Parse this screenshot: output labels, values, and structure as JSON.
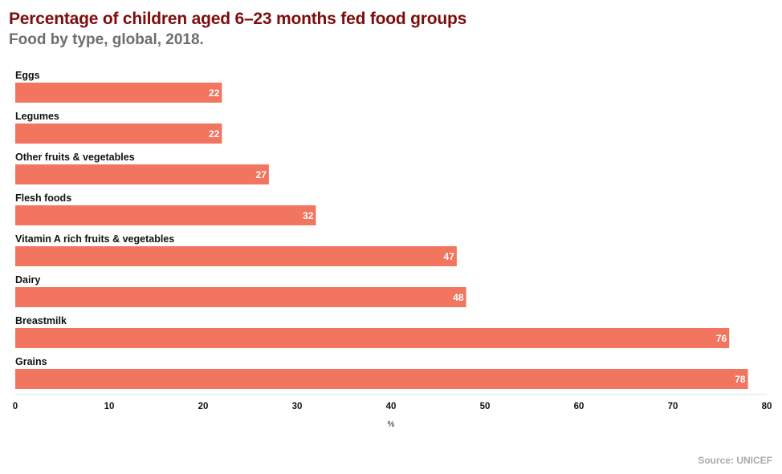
{
  "header": {
    "title": "Percentage of children aged 6–23 months fed food groups",
    "subtitle": "Food by type, global, 2018."
  },
  "footer": {
    "source": "Source: UNICEF"
  },
  "chart_data": {
    "type": "bar",
    "orientation": "horizontal",
    "title": "Percentage of children aged 6–23 months fed food groups",
    "subtitle": "Food by type, global, 2018.",
    "categories": [
      "Eggs",
      "Legumes",
      "Other fruits & vegetables",
      "Flesh foods",
      "Vitamin A rich fruits & vegetables",
      "Dairy",
      "Breastmilk",
      "Grains"
    ],
    "values": [
      22,
      22,
      27,
      32,
      47,
      48,
      76,
      78
    ],
    "xlabel": "%",
    "ylabel": "",
    "xlim": [
      0,
      80
    ],
    "xticks": [
      0,
      10,
      20,
      30,
      40,
      50,
      60,
      70,
      80
    ],
    "grid": false,
    "legend": "none",
    "bar_color": "#f27560",
    "value_label_color": "#ffffff"
  }
}
